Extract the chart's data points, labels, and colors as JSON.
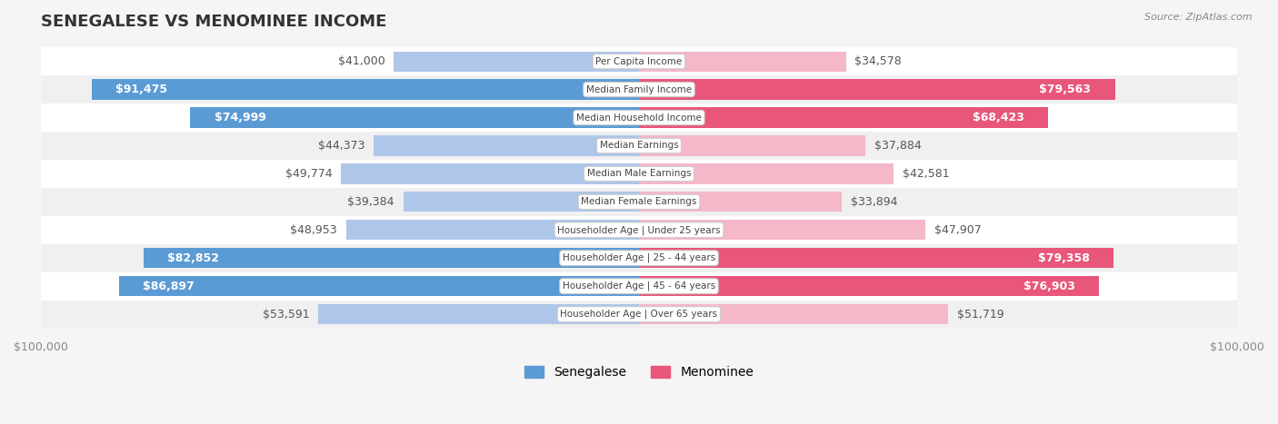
{
  "title": "SENEGALESE VS MENOMINEE INCOME",
  "source": "Source: ZipAtlas.com",
  "categories": [
    "Per Capita Income",
    "Median Family Income",
    "Median Household Income",
    "Median Earnings",
    "Median Male Earnings",
    "Median Female Earnings",
    "Householder Age | Under 25 years",
    "Householder Age | 25 - 44 years",
    "Householder Age | 45 - 64 years",
    "Householder Age | Over 65 years"
  ],
  "senegalese": [
    41000,
    91475,
    74999,
    44373,
    49774,
    39384,
    48953,
    82852,
    86897,
    53591
  ],
  "menominee": [
    34578,
    79563,
    68423,
    37884,
    42581,
    33894,
    47907,
    79358,
    76903,
    51719
  ],
  "senegalese_labels": [
    "$41,000",
    "$91,475",
    "$74,999",
    "$44,373",
    "$49,774",
    "$39,384",
    "$48,953",
    "$82,852",
    "$86,897",
    "$53,591"
  ],
  "menominee_labels": [
    "$34,578",
    "$79,563",
    "$68,423",
    "$37,884",
    "$42,581",
    "$33,894",
    "$47,907",
    "$79,358",
    "$76,903",
    "$51,719"
  ],
  "senegalese_color_light": "#aec6e8",
  "senegalese_color_dark": "#5b9bd5",
  "menominee_color_light": "#f4b8c8",
  "menominee_color_dark": "#e8567a",
  "max_val": 100000,
  "bg_color": "#f5f5f5",
  "row_bg_light": "#f0f0f0",
  "row_bg_white": "#ffffff",
  "label_fontsize": 9,
  "title_fontsize": 13,
  "legend_fontsize": 10
}
